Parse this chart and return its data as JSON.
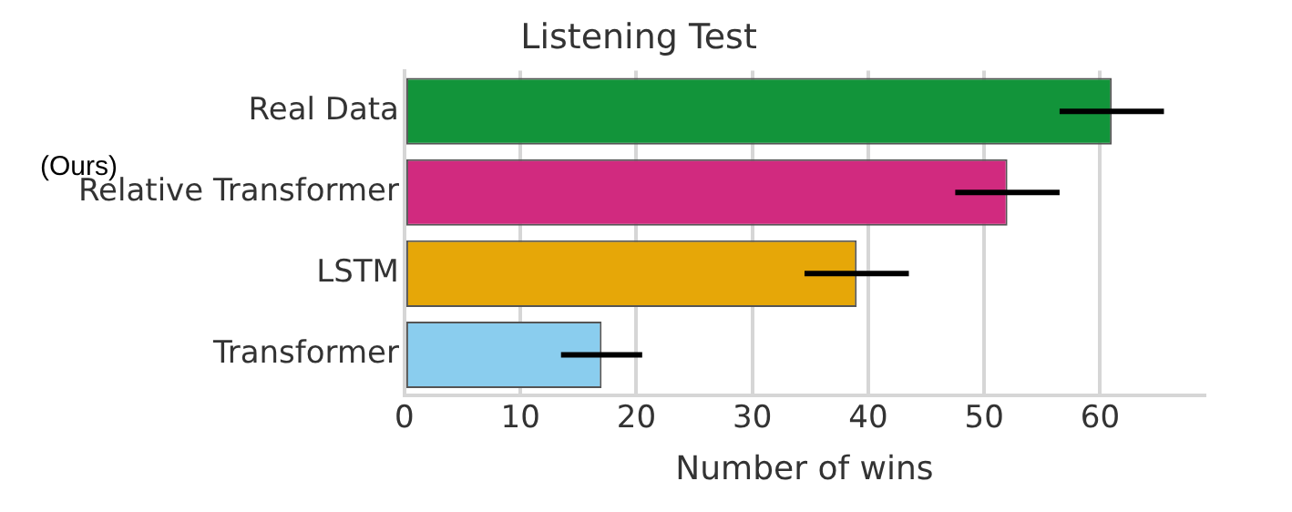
{
  "chart_data": {
    "type": "bar",
    "orientation": "horizontal",
    "title": "Listening Test",
    "xlabel": "Number of wins",
    "categories": [
      "Real Data",
      "Relative Transformer",
      "LSTM",
      "Transformer"
    ],
    "values": [
      61,
      52,
      39,
      17
    ],
    "colors": [
      "#12943a",
      "#d12a7f",
      "#e6a708",
      "#8acdee"
    ],
    "errors": [
      [
        56.5,
        65.5
      ],
      [
        47.5,
        56.5
      ],
      [
        34.5,
        43.5
      ],
      [
        13.5,
        20.5
      ]
    ],
    "xlim": [
      0,
      69
    ],
    "xticks": [
      0,
      10,
      20,
      30,
      40,
      50,
      60
    ],
    "grid": "x",
    "annotations": [
      "(Ours)"
    ]
  }
}
